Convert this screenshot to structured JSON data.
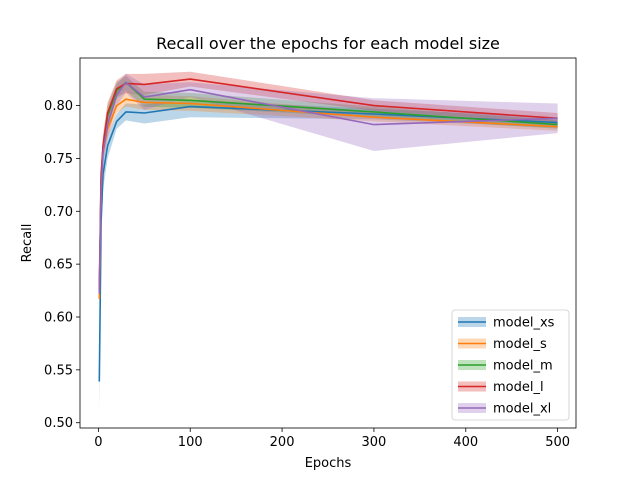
{
  "chart_data": {
    "type": "line",
    "title": "Recall over the epochs for each model size",
    "xlabel": "Epochs",
    "ylabel": "Recall",
    "xlim": [
      -20,
      520
    ],
    "ylim": [
      0.495,
      0.845
    ],
    "xticks": [
      0,
      100,
      200,
      300,
      400,
      500
    ],
    "yticks": [
      0.5,
      0.55,
      0.6,
      0.65,
      0.7,
      0.75,
      0.8
    ],
    "ytick_labels": [
      "0.50",
      "0.55",
      "0.60",
      "0.65",
      "0.70",
      "0.75",
      "0.80"
    ],
    "grid": false,
    "legend_position": "lower-right",
    "x": [
      1,
      3,
      5,
      10,
      20,
      30,
      50,
      100,
      300,
      500
    ],
    "series": [
      {
        "name": "model_xs",
        "color": "#1f77b4",
        "values": [
          0.539,
          0.69,
          0.735,
          0.762,
          0.785,
          0.794,
          0.793,
          0.799,
          0.792,
          0.784
        ],
        "lower": [
          0.51,
          0.67,
          0.72,
          0.75,
          0.778,
          0.786,
          0.783,
          0.789,
          0.787,
          0.779
        ],
        "upper": [
          0.57,
          0.71,
          0.748,
          0.772,
          0.792,
          0.802,
          0.801,
          0.805,
          0.797,
          0.789
        ]
      },
      {
        "name": "model_s",
        "color": "#ff7f0e",
        "values": [
          0.617,
          0.72,
          0.755,
          0.778,
          0.8,
          0.806,
          0.803,
          0.802,
          0.789,
          0.78
        ],
        "lower": [
          0.612,
          0.71,
          0.745,
          0.77,
          0.793,
          0.799,
          0.796,
          0.795,
          0.785,
          0.776
        ],
        "upper": [
          0.622,
          0.73,
          0.765,
          0.786,
          0.807,
          0.813,
          0.81,
          0.809,
          0.794,
          0.784
        ]
      },
      {
        "name": "model_m",
        "color": "#2ca02c",
        "values": [
          0.622,
          0.73,
          0.76,
          0.79,
          0.814,
          0.822,
          0.806,
          0.805,
          0.794,
          0.782
        ],
        "lower": [
          0.616,
          0.72,
          0.75,
          0.78,
          0.806,
          0.814,
          0.799,
          0.798,
          0.789,
          0.778
        ],
        "upper": [
          0.628,
          0.74,
          0.77,
          0.8,
          0.822,
          0.828,
          0.813,
          0.812,
          0.799,
          0.786
        ]
      },
      {
        "name": "model_l",
        "color": "#d62728",
        "values": [
          0.626,
          0.735,
          0.762,
          0.793,
          0.816,
          0.821,
          0.82,
          0.825,
          0.8,
          0.788
        ],
        "lower": [
          0.62,
          0.725,
          0.752,
          0.783,
          0.808,
          0.812,
          0.81,
          0.818,
          0.795,
          0.783
        ],
        "upper": [
          0.632,
          0.745,
          0.772,
          0.803,
          0.824,
          0.83,
          0.83,
          0.832,
          0.805,
          0.793
        ]
      },
      {
        "name": "model_xl",
        "color": "#9467bd",
        "values": [
          0.622,
          0.72,
          0.755,
          0.782,
          0.81,
          0.822,
          0.808,
          0.815,
          0.782,
          0.788
        ],
        "lower": [
          0.615,
          0.71,
          0.745,
          0.77,
          0.8,
          0.812,
          0.796,
          0.808,
          0.757,
          0.774
        ],
        "upper": [
          0.629,
          0.73,
          0.765,
          0.794,
          0.82,
          0.83,
          0.82,
          0.822,
          0.807,
          0.802
        ]
      }
    ]
  }
}
